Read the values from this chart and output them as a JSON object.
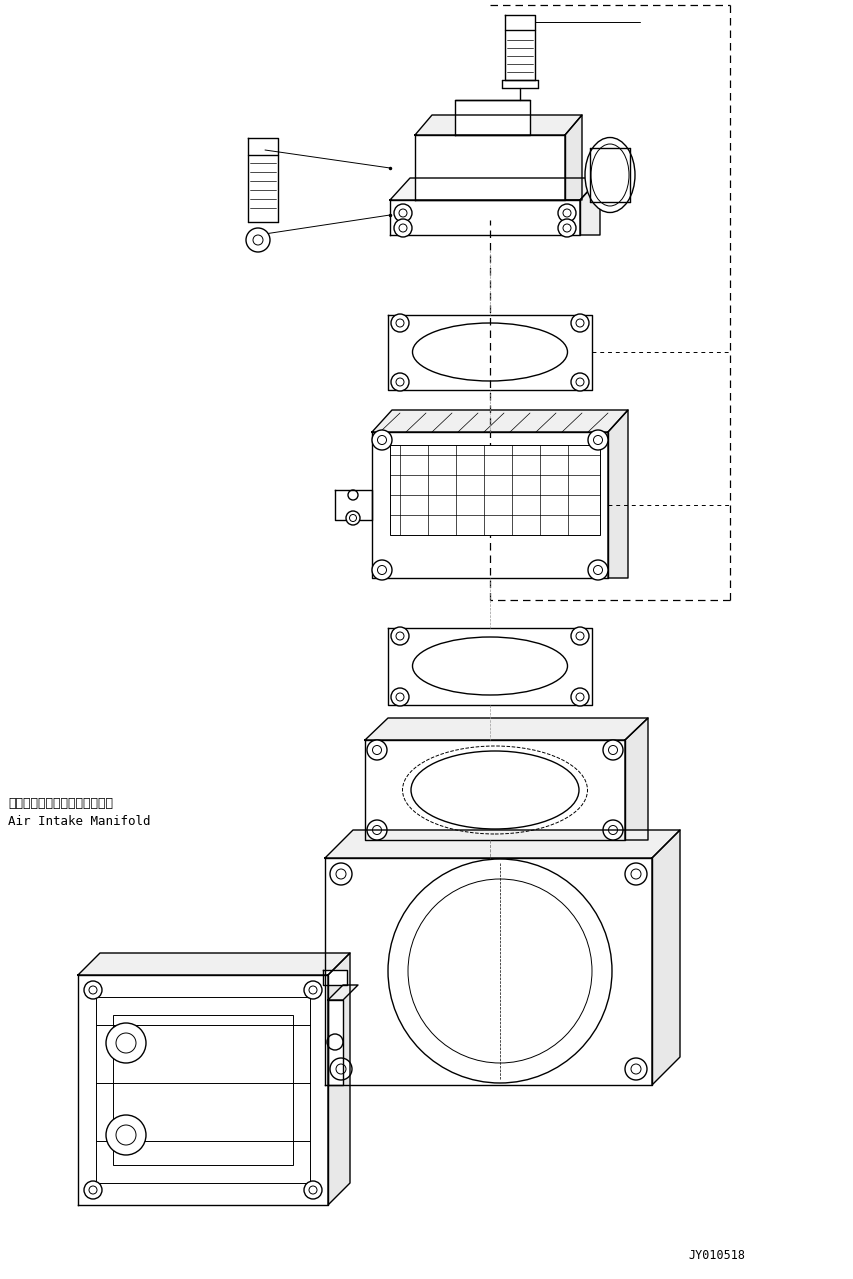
{
  "bg_color": "#ffffff",
  "line_color": "#000000",
  "label_japanese": "エアーインテークマニホールド",
  "label_english": "Air Intake Manifold",
  "part_number": "JY010518",
  "label_fontsize": 9.0,
  "pn_fontsize": 8.5
}
